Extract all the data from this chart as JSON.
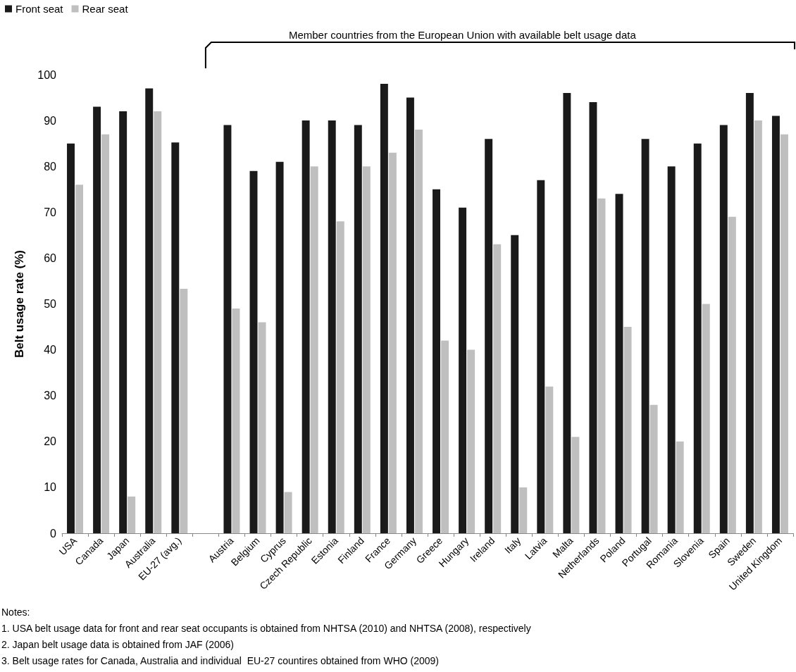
{
  "chart_data": {
    "type": "bar",
    "ylabel": "Belt usage rate (%)",
    "categories": [
      "USA",
      "Canada",
      "Japan",
      "Australia",
      "EU-27 (avg.)",
      null,
      "Austria",
      "Belgium",
      "Cyprus",
      "Czech Republic",
      "Estonia",
      "Finland",
      "France",
      "Germany",
      "Greece",
      "Hungary",
      "Ireland",
      "Italy",
      "Latvia",
      "Malta",
      "Netherlands",
      "Poland",
      "Portugal",
      "Romania",
      "Slovenia",
      "Spain",
      "Sweden",
      "United Kingdom"
    ],
    "series": [
      {
        "name": "Front seat",
        "color": "#1a1a1a",
        "values": [
          85,
          93,
          92,
          97,
          85.2,
          null,
          89,
          79,
          81,
          90,
          90,
          89,
          98,
          95,
          75,
          71,
          86,
          65,
          77,
          96,
          94,
          74,
          86,
          80,
          85,
          89,
          96,
          91
        ]
      },
      {
        "name": "Rear seat",
        "color": "#bfbfbf",
        "values": [
          76,
          87,
          8,
          92,
          53.3,
          null,
          49,
          46,
          9,
          80,
          68,
          80,
          83,
          88,
          42,
          40,
          63,
          10,
          32,
          21,
          73,
          45,
          28,
          20,
          50,
          69,
          90,
          87
        ]
      }
    ],
    "ylim": [
      0,
      100
    ],
    "yticks": [
      0,
      10,
      20,
      30,
      40,
      50,
      60,
      70,
      80,
      90,
      100
    ],
    "grid": false,
    "legend": "top left",
    "annotations": [
      "Member countries from the European Union with available belt usage data",
      "Notes:",
      "1. USA belt usage data for front and rear seat occupants is obtained from NHTSA (2010) and NHTSA (2008), respectively",
      "2. Japan belt usage data is obtained from JAF (2006)",
      "3. Belt usage rates for Canada, Australia and individual  EU-27 countires obtained from WHO (2009)"
    ]
  }
}
